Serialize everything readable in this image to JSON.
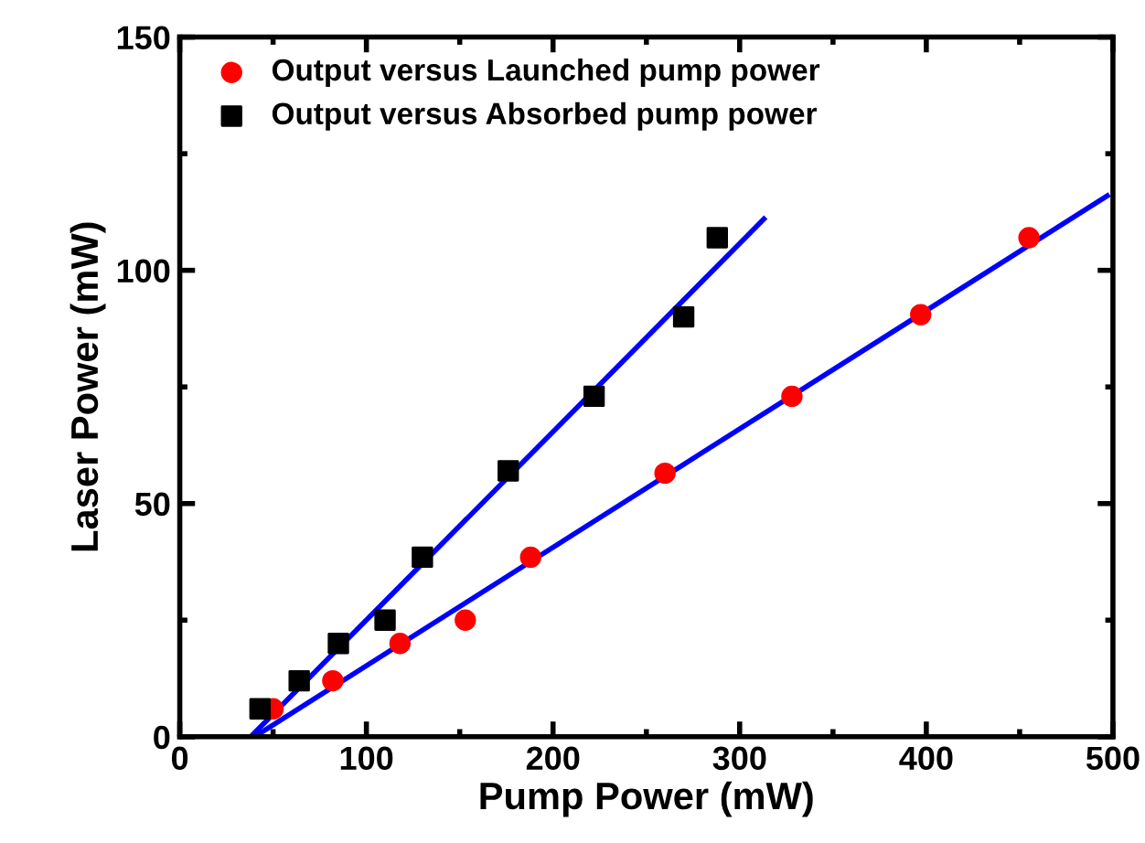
{
  "chart_data": {
    "type": "scatter",
    "xlabel": "Pump Power (mW)",
    "ylabel": "Laser Power (mW)",
    "xlim": [
      0,
      500
    ],
    "ylim": [
      0,
      150
    ],
    "xticks": [
      0,
      100,
      200,
      300,
      400,
      500
    ],
    "yticks": [
      0,
      50,
      100,
      150
    ],
    "grid": false,
    "legend": "top left",
    "series": [
      {
        "name": "Output versus Launched pump power",
        "color": "#ff0000",
        "marker": "circle",
        "x": [
          50,
          82,
          118,
          153,
          188,
          260,
          328,
          397,
          455
        ],
        "values": [
          6,
          12,
          20,
          25,
          38.5,
          56.5,
          73,
          90.5,
          107
        ]
      },
      {
        "name": "Output versus Absorbed pump power",
        "color": "#000000",
        "marker": "square",
        "x": [
          43,
          64,
          85,
          110,
          130,
          176,
          222,
          270,
          288
        ],
        "values": [
          6,
          12,
          20,
          25,
          38.5,
          57,
          73,
          90,
          107
        ]
      },
      {
        "type": "line",
        "color": "#0000ff",
        "x": [
          38,
          313
        ],
        "values": [
          0,
          111
        ]
      },
      {
        "type": "line",
        "color": "#0000ff",
        "x": [
          40,
          497
        ],
        "values": [
          0,
          116
        ]
      }
    ]
  }
}
